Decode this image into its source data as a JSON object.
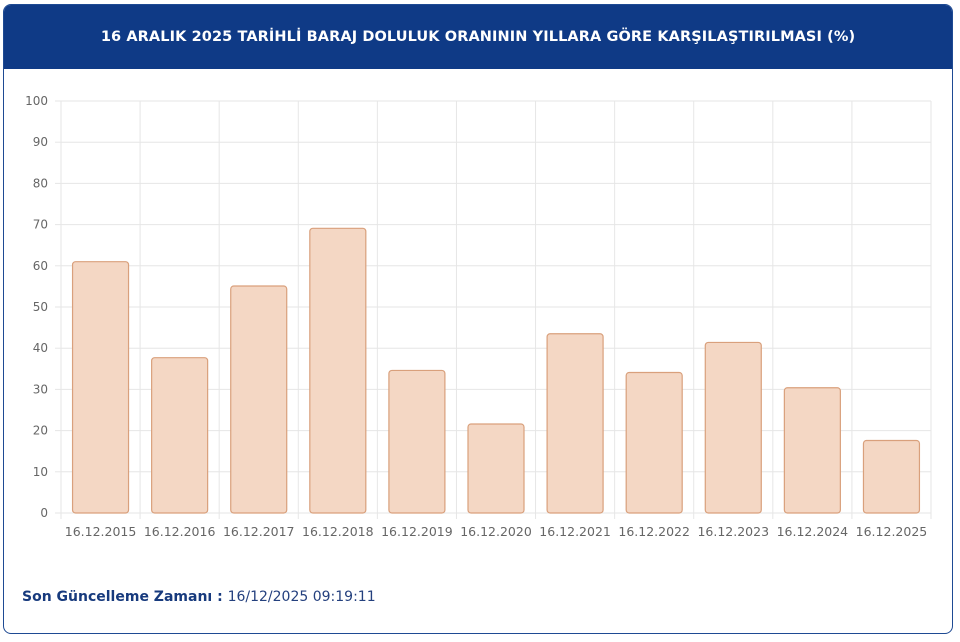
{
  "header": {
    "title": "16 ARALIK 2025 TARİHLİ BARAJ DOLULUK ORANININ YILLARA GÖRE KARŞILAŞTIRILMASI (%)"
  },
  "footer": {
    "label": "Son Güncelleme Zamanı",
    "separator": " : ",
    "value": "16/12/2025 09:19:11"
  },
  "colors": {
    "header_bg": "#0f3a86",
    "bar_fill": "#f4d7c4",
    "bar_stroke": "#d9a07c",
    "grid": "#e6e6e6"
  },
  "chart_data": {
    "type": "bar",
    "categories": [
      "16.12.2015",
      "16.12.2016",
      "16.12.2017",
      "16.12.2018",
      "16.12.2019",
      "16.12.2020",
      "16.12.2021",
      "16.12.2022",
      "16.12.2023",
      "16.12.2024",
      "16.12.2025"
    ],
    "values": [
      61,
      37.7,
      55.1,
      69.1,
      34.6,
      21.6,
      43.5,
      34.1,
      41.4,
      30.4,
      17.6
    ],
    "ylim": [
      0,
      100
    ],
    "yticks": [
      0,
      10,
      20,
      30,
      40,
      50,
      60,
      70,
      80,
      90,
      100
    ],
    "grid": true,
    "legend": "none"
  }
}
